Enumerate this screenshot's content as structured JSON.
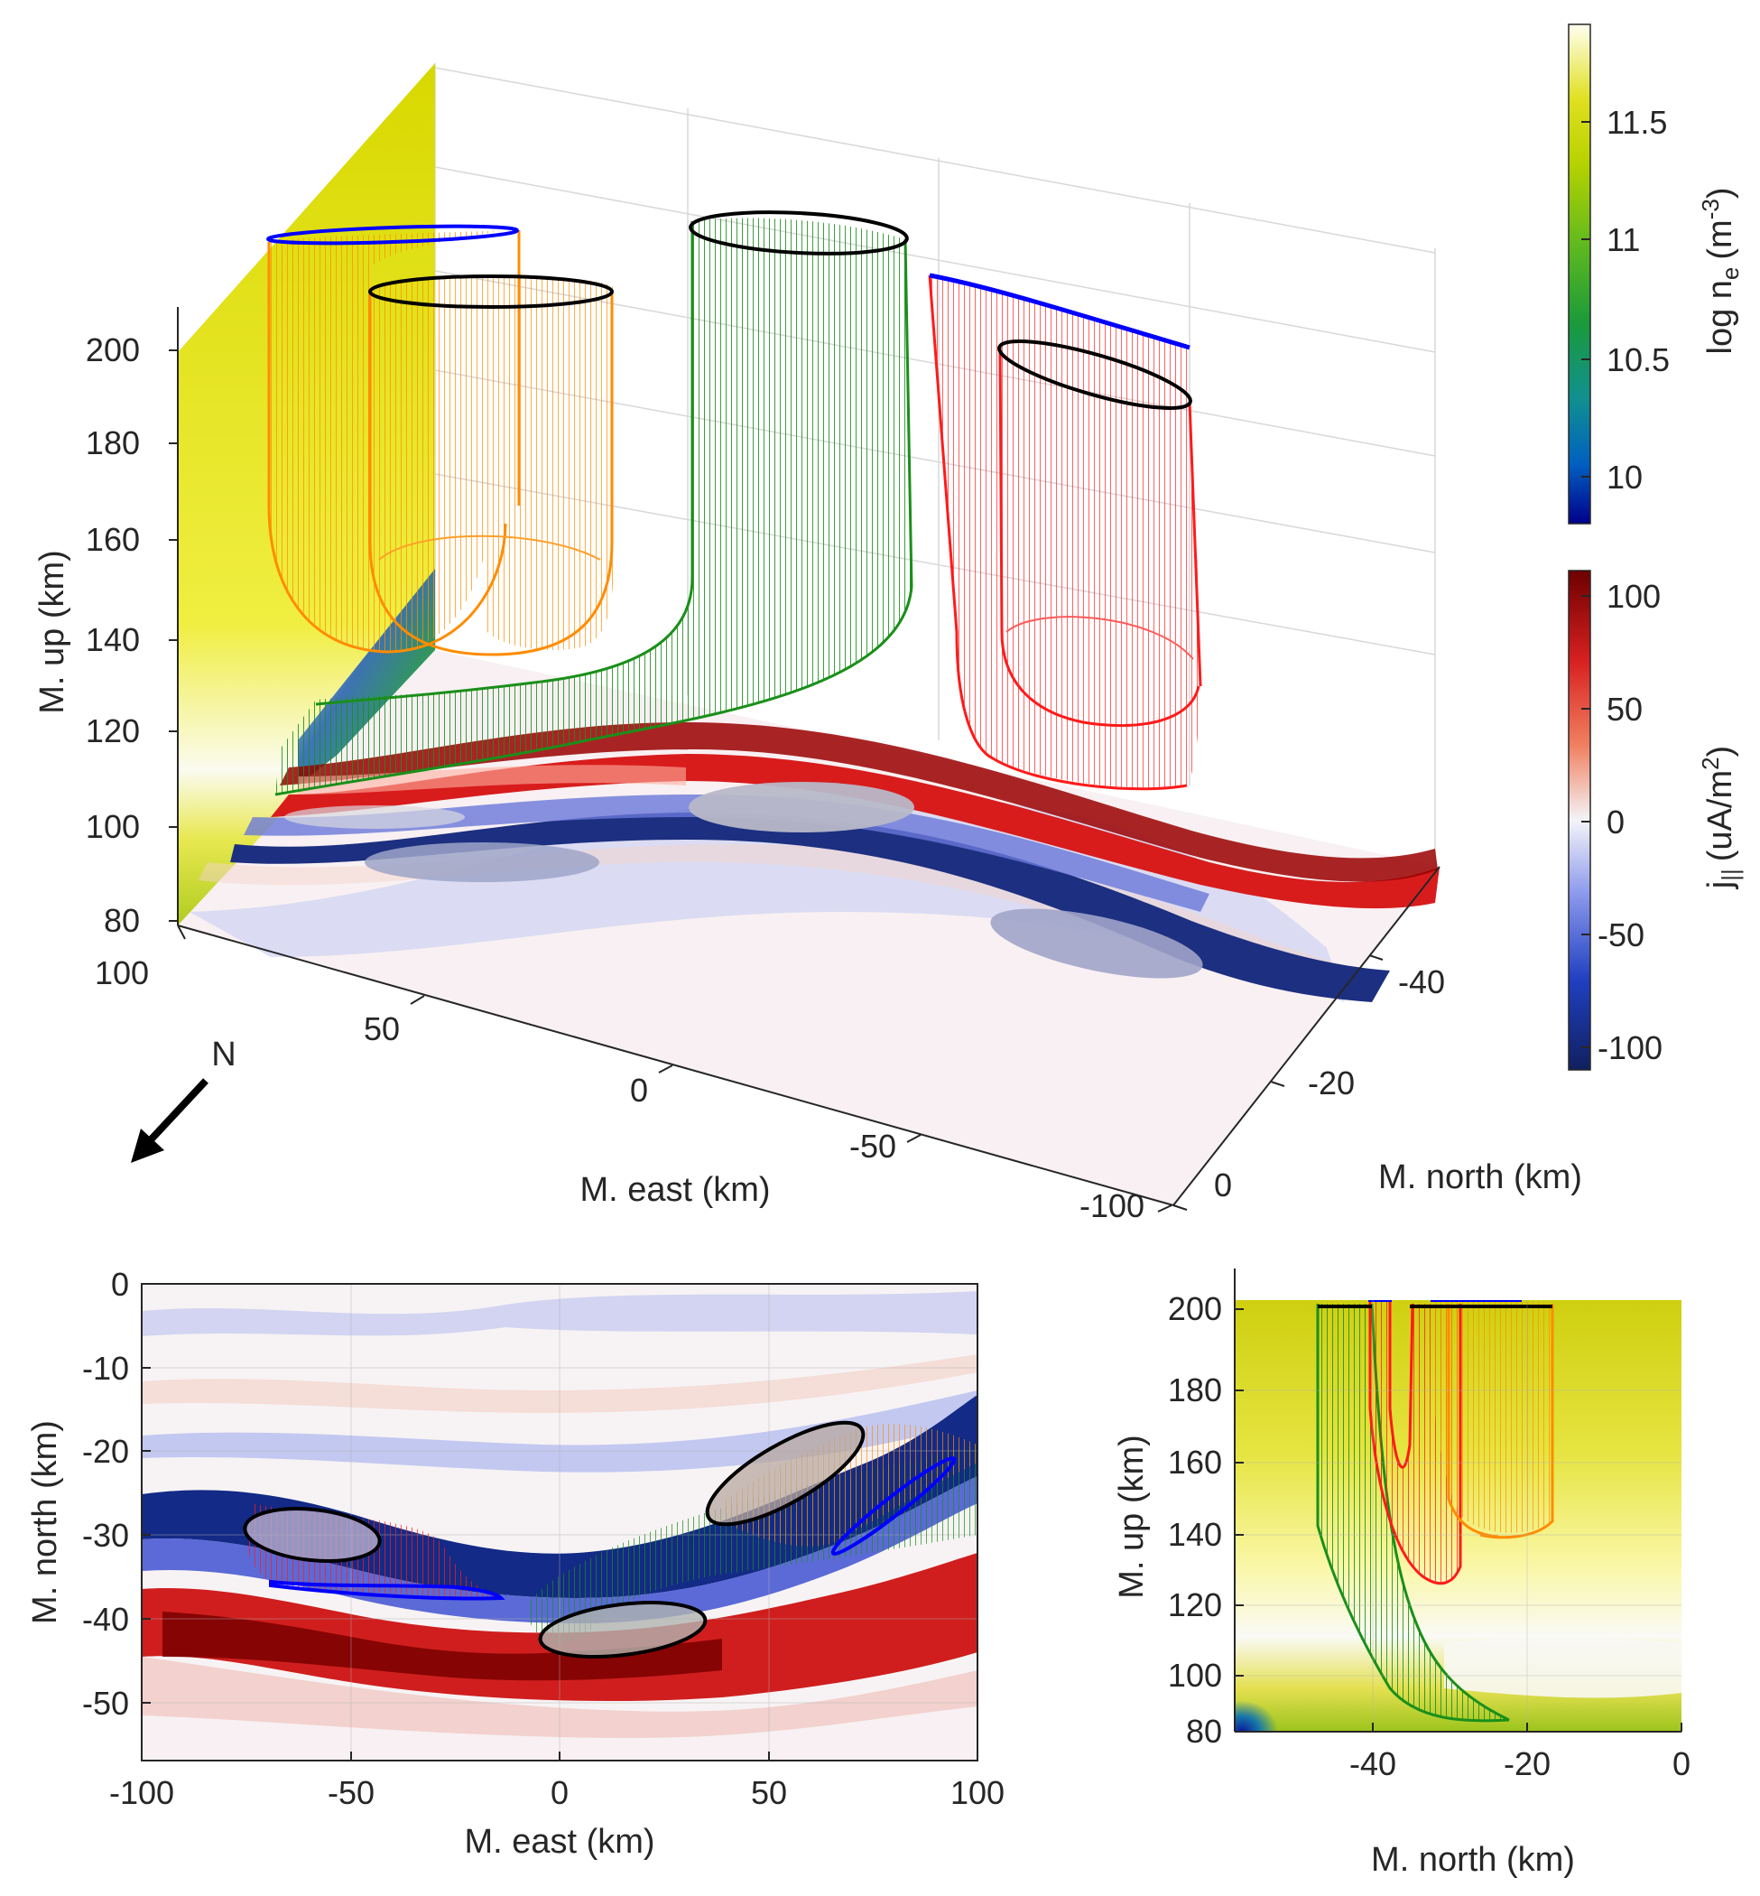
{
  "chart_data": [
    {
      "id": "perspective-3d",
      "type": "surface",
      "xlabel": "M. east (km)",
      "ylabel": "M. north (km)",
      "zlabel": "M. up (km)",
      "x_ticks": [
        "100",
        "50",
        "0",
        "-50",
        "-100"
      ],
      "y_ticks": [
        "-40",
        "-20",
        "0"
      ],
      "z_ticks": [
        "200",
        "180",
        "160",
        "140",
        "120",
        "100",
        "80"
      ],
      "xlim": [
        -100,
        100
      ],
      "ylim": [
        -57,
        0
      ],
      "zlim": [
        80,
        210
      ],
      "north_arrow_label": "N",
      "grid": true,
      "flux_tubes": [
        {
          "color": "#ff8c00",
          "top_altitude": 200,
          "bottom_altitude": 125,
          "east_range": [
            40,
            100
          ],
          "north_range": [
            -38,
            -18
          ]
        },
        {
          "color": "#1a8f1a",
          "top_altitude": 200,
          "bottom_altitude": 85,
          "east_range": [
            -10,
            100
          ],
          "north_range": [
            -47,
            -20
          ]
        },
        {
          "color": "#ff1a1a",
          "top_altitude": 200,
          "bottom_altitude": 115,
          "east_range": [
            -75,
            -15
          ],
          "north_range": [
            -40,
            -28
          ]
        }
      ]
    },
    {
      "id": "colorbar-density",
      "type": "colorbar",
      "label": "log n",
      "label_sub": "e",
      "label_units": "(m",
      "label_sup": "-3",
      "ticks": [
        "11.5",
        "11",
        "10.5",
        "10"
      ],
      "tick_values": [
        11.5,
        11,
        10.5,
        10
      ],
      "range": [
        9.8,
        11.9
      ],
      "colormap": [
        "#00008b",
        "#0060c0",
        "#119090",
        "#1a9a3a",
        "#5cb820",
        "#b6d200",
        "#e0e020",
        "#fffff0"
      ]
    },
    {
      "id": "colorbar-current",
      "type": "colorbar",
      "label": "j",
      "label_sub": "||",
      "label_units": "(uA/m",
      "label_sup": "2",
      "ticks": [
        "100",
        "50",
        "0",
        "-50",
        "-100"
      ],
      "tick_values": [
        100,
        50,
        0,
        -50,
        -100
      ],
      "range": [
        -110,
        110
      ],
      "colormap": [
        "#102060",
        "#2040c0",
        "#7a8ae8",
        "#f4f4f8",
        "#f08060",
        "#d82020",
        "#6e0000"
      ]
    },
    {
      "id": "map-view",
      "type": "heatmap",
      "xlabel": "M. east (km)",
      "ylabel": "M. north (km)",
      "x_ticks": [
        "-100",
        "-50",
        "0",
        "50",
        "100"
      ],
      "x_values": [
        -100,
        -50,
        0,
        50,
        100
      ],
      "y_ticks": [
        "0",
        "-10",
        "-20",
        "-30",
        "-40",
        "-50"
      ],
      "y_values": [
        0,
        -10,
        -20,
        -30,
        -40,
        -50
      ],
      "xlim": [
        -100,
        100
      ],
      "ylim": [
        -57,
        0
      ],
      "grid": true,
      "current_bands": [
        {
          "sign": "negative",
          "north_at_east_-100": -29,
          "north_at_east_0": -34,
          "north_at_east_100": -13
        },
        {
          "sign": "positive",
          "north_at_east_-100": -42,
          "north_at_east_0": -45,
          "north_at_east_100": -38
        }
      ],
      "footprints": [
        {
          "color": "#ff1a1a",
          "center_east": -50,
          "center_north": -32,
          "top_ellipse_color": "#000000",
          "bottom_outline_color": "#0000ff"
        },
        {
          "color": "#1a8f1a",
          "center_east": 10,
          "center_north": -44,
          "top_ellipse_color": "#000000"
        },
        {
          "color": "#ff8c00",
          "center_east": 55,
          "center_north": -23,
          "top_ellipse_color": "#000000",
          "bottom_outline_color": "#0000ff"
        }
      ]
    },
    {
      "id": "side-view",
      "type": "heatmap",
      "xlabel": "M. north (km)",
      "ylabel": "M. up (km)",
      "x_ticks": [
        "-40",
        "-20",
        "0"
      ],
      "x_values": [
        -40,
        -20,
        0
      ],
      "y_ticks": [
        "200",
        "180",
        "160",
        "140",
        "120",
        "100",
        "80"
      ],
      "y_values": [
        200,
        180,
        160,
        140,
        120,
        100,
        80
      ],
      "xlim": [
        -57,
        0
      ],
      "ylim": [
        80,
        210
      ],
      "grid": true,
      "flux_tubes": [
        {
          "color": "#1a8f1a",
          "north_top": [
            -46,
            -38
          ],
          "north_bottom": [
            -32,
            -23
          ],
          "bottom_altitude": 85
        },
        {
          "color": "#ff1a1a",
          "north_top": [
            -40,
            -29
          ],
          "bottom_altitude": 115
        },
        {
          "color": "#ff8c00",
          "north_top": [
            -31,
            -17
          ],
          "bottom_altitude": 124
        }
      ]
    }
  ]
}
